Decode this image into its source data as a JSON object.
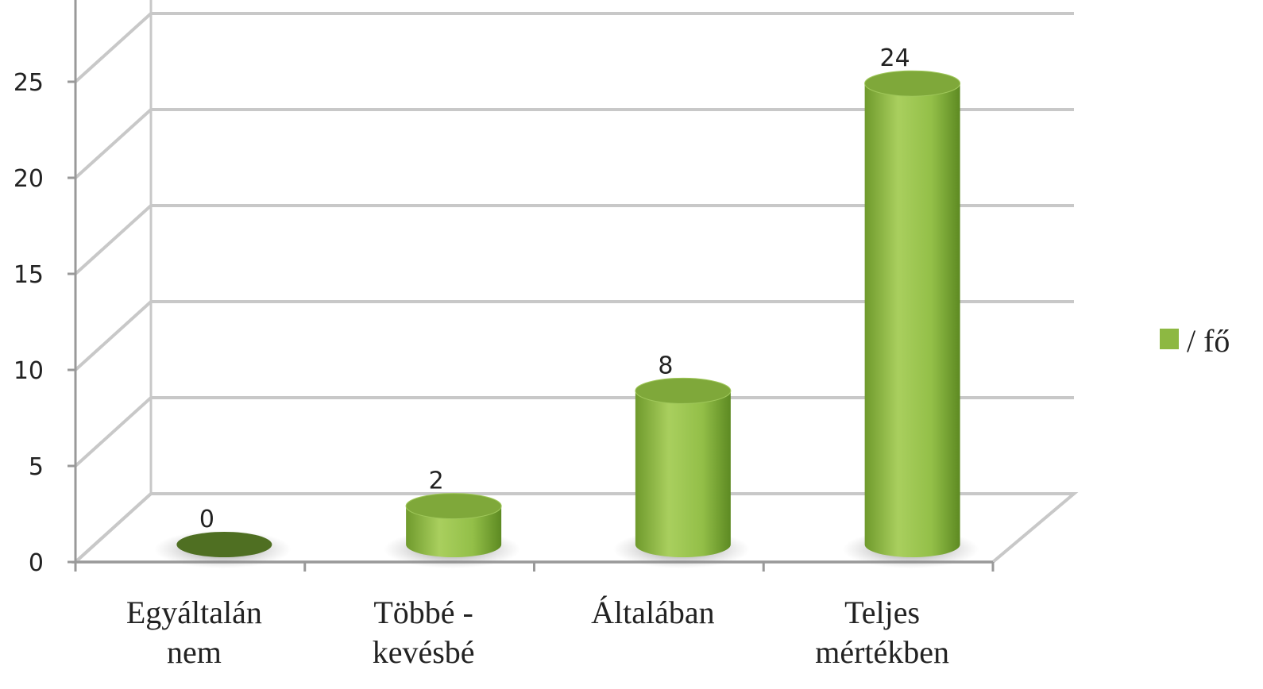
{
  "chart_data": {
    "type": "bar",
    "style": "3d-cylinder",
    "categories": [
      [
        "Egyáltalán",
        "nem"
      ],
      [
        "Többé -",
        "kevésbé"
      ],
      [
        "Általában"
      ],
      [
        "Teljes",
        "mértékben"
      ]
    ],
    "series": [
      {
        "name": "/ fő",
        "values": [
          0,
          2,
          8,
          24
        ],
        "color": "#8db842"
      }
    ],
    "data_labels": [
      "0",
      "2",
      "8",
      "24"
    ],
    "y_ticks": [
      "0",
      "5",
      "10",
      "15",
      "20",
      "25"
    ],
    "ylim": [
      0,
      25
    ],
    "grid": true,
    "legend": "right"
  }
}
